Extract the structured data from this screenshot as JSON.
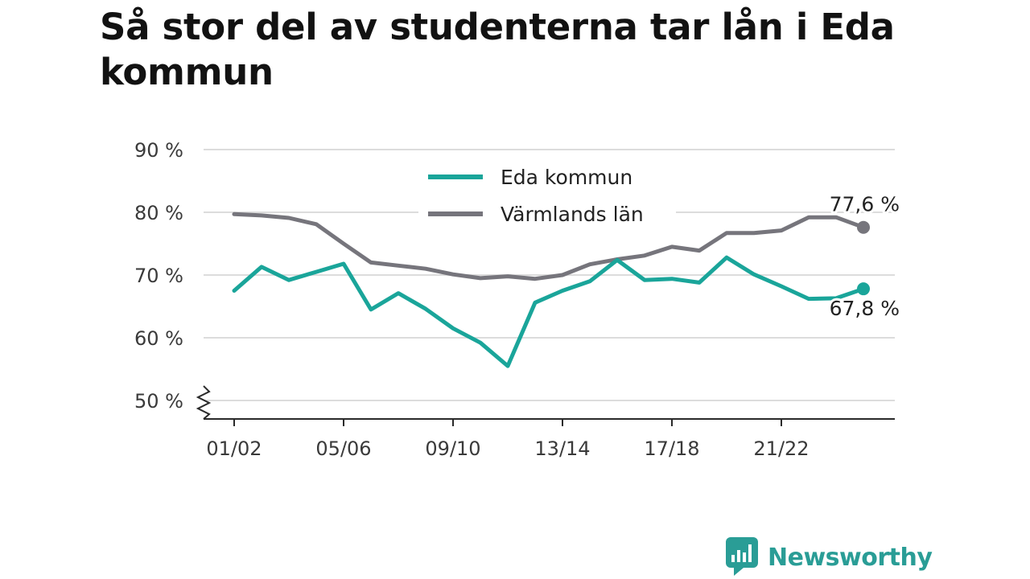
{
  "title": "Så stor del av studenterna tar lån i Eda kommun",
  "brand": {
    "name": "Newsworthy",
    "color": "#2a9d96"
  },
  "chart_data": {
    "type": "line",
    "title": "Så stor del av studenterna tar lån i Eda kommun",
    "x": [
      "01/02",
      "02/03",
      "03/04",
      "04/05",
      "05/06",
      "06/07",
      "07/08",
      "08/09",
      "09/10",
      "10/11",
      "11/12",
      "12/13",
      "13/14",
      "14/15",
      "15/16",
      "16/17",
      "17/18",
      "18/19",
      "19/20",
      "20/21",
      "21/22",
      "22/23",
      "23/24",
      "24/25"
    ],
    "x_tick_labels": [
      "01/02",
      "05/06",
      "09/10",
      "13/14",
      "17/18",
      "21/22"
    ],
    "y_tick_labels": [
      "50 %",
      "60 %",
      "70 %",
      "80 %",
      "90 %"
    ],
    "y_ticks": [
      50,
      60,
      70,
      80,
      90
    ],
    "ylim": [
      47,
      90
    ],
    "y_axis_break": true,
    "grid": true,
    "legend_position": "top-center",
    "series": [
      {
        "name": "Eda kommun",
        "color": "#1aa59a",
        "values": [
          67.5,
          71.3,
          69.2,
          70.5,
          71.8,
          64.5,
          67.1,
          64.6,
          61.5,
          59.2,
          55.5,
          65.6,
          67.5,
          69.0,
          72.4,
          69.2,
          69.4,
          68.8,
          72.8,
          70.1,
          68.2,
          66.2,
          66.3,
          67.8
        ],
        "end_label": "67,8 %"
      },
      {
        "name": "Värmlands län",
        "color": "#76757c",
        "values": [
          79.7,
          79.5,
          79.1,
          78.1,
          75.0,
          72.0,
          71.5,
          71.0,
          70.1,
          69.5,
          69.8,
          69.4,
          70.0,
          71.7,
          72.5,
          73.1,
          74.5,
          73.9,
          76.7,
          76.7,
          77.1,
          79.2,
          79.2,
          77.6
        ],
        "end_label": "77,6 %"
      }
    ]
  }
}
